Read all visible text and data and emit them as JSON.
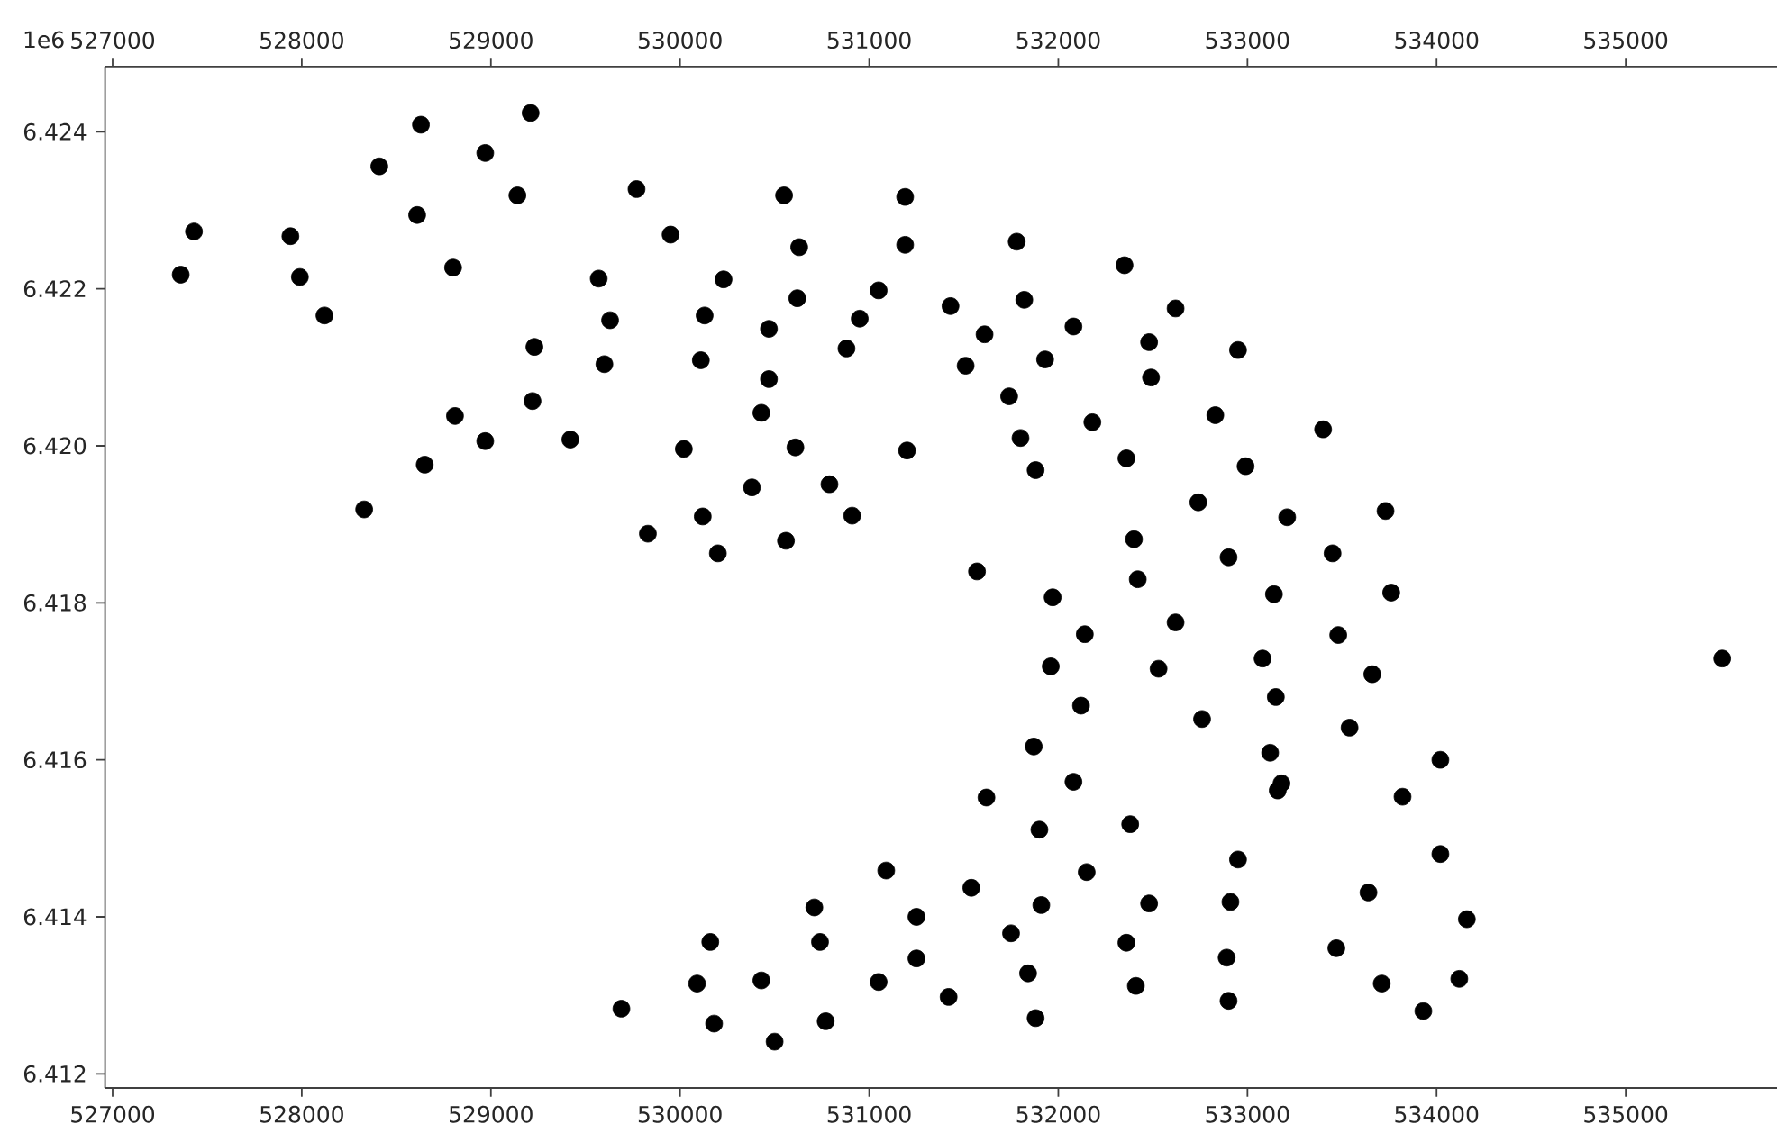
{
  "chart_data": {
    "type": "scatter",
    "color": "#000000",
    "marker": "circle",
    "ylabel": "1e6",
    "x": [
      527430,
      527360,
      527940,
      527990,
      528120,
      528410,
      528630,
      528610,
      528800,
      528970,
      529210,
      529140,
      529570,
      529630,
      529230,
      529600,
      529220,
      528810,
      528970,
      529420,
      528650,
      528330,
      529770,
      529950,
      530230,
      530130,
      530110,
      530550,
      530630,
      530620,
      530470,
      530470,
      530430,
      530020,
      530610,
      531190,
      531190,
      531050,
      530950,
      530880,
      531200,
      530380,
      530790,
      530910,
      530120,
      529830,
      530200,
      530560,
      531430,
      531610,
      531510,
      531780,
      531820,
      531930,
      531740,
      532080,
      531800,
      531880,
      532180,
      532350,
      532620,
      532480,
      532490,
      532360,
      532740,
      532400,
      532420,
      531570,
      532950,
      532830,
      533400,
      532990,
      533210,
      533730,
      532900,
      533450,
      531970,
      532620,
      532140,
      531960,
      532530,
      532120,
      532760,
      531870,
      532080,
      531620,
      531900,
      532380,
      531090,
      531540,
      532150,
      532480,
      531910,
      530710,
      531250,
      531750,
      530160,
      530740,
      532360,
      531250,
      531840,
      530090,
      530430,
      531050,
      532410,
      531420,
      529690,
      530180,
      530770,
      531880,
      530500,
      533140,
      533760,
      533480,
      533080,
      533660,
      535510,
      533150,
      533540,
      533120,
      534020,
      533180,
      533160,
      533820,
      532950,
      534020,
      532910,
      533640,
      534160,
      532890,
      533470,
      533710,
      534120,
      532900,
      533930
    ],
    "values": [
      6.42273,
      6.42218,
      6.42267,
      6.42215,
      6.42166,
      6.42356,
      6.42409,
      6.42294,
      6.42227,
      6.42373,
      6.42424,
      6.42319,
      6.42213,
      6.4216,
      6.42126,
      6.42104,
      6.42057,
      6.42038,
      6.42006,
      6.42008,
      6.41976,
      6.41919,
      6.42327,
      6.42269,
      6.42212,
      6.42166,
      6.42109,
      6.42319,
      6.42253,
      6.42188,
      6.42149,
      6.42085,
      6.42042,
      6.41996,
      6.41998,
      6.42317,
      6.42256,
      6.42198,
      6.42162,
      6.42124,
      6.41994,
      6.41947,
      6.41951,
      6.41911,
      6.4191,
      6.41888,
      6.41863,
      6.41879,
      6.42178,
      6.42142,
      6.42102,
      6.4226,
      6.42186,
      6.4211,
      6.42063,
      6.42152,
      6.4201,
      6.41969,
      6.4203,
      6.4223,
      6.42175,
      6.42132,
      6.42087,
      6.41984,
      6.41928,
      6.41881,
      6.4183,
      6.4184,
      6.42122,
      6.42039,
      6.42021,
      6.41974,
      6.41909,
      6.41917,
      6.41858,
      6.41863,
      6.41807,
      6.41775,
      6.4176,
      6.41719,
      6.41716,
      6.41669,
      6.41652,
      6.41617,
      6.41572,
      6.41552,
      6.41511,
      6.41518,
      6.41459,
      6.41437,
      6.41457,
      6.41417,
      6.41415,
      6.41412,
      6.414,
      6.41379,
      6.41368,
      6.41368,
      6.41367,
      6.41347,
      6.41328,
      6.41315,
      6.41319,
      6.41317,
      6.41312,
      6.41298,
      6.41283,
      6.41264,
      6.41267,
      6.41271,
      6.41241,
      6.41811,
      6.41813,
      6.41759,
      6.41729,
      6.41709,
      6.41729,
      6.4168,
      6.41641,
      6.41609,
      6.416,
      6.4157,
      6.41561,
      6.41553,
      6.41473,
      6.4148,
      6.41419,
      6.41431,
      6.41397,
      6.41348,
      6.4136,
      6.41315,
      6.41321,
      6.41293,
      6.4128
    ],
    "xlim": [
      526960,
      535800
    ],
    "xticks": [
      527000,
      528000,
      529000,
      530000,
      531000,
      532000,
      533000,
      534000,
      535000
    ],
    "x2lim": [
      526960,
      535800
    ],
    "x2ticks": [
      527000,
      528000,
      529000,
      530000,
      531000,
      532000,
      533000,
      534000,
      535000
    ],
    "ylim": [
      6.41182,
      6.42483
    ],
    "yticks": [
      6.412,
      6.414,
      6.416,
      6.418,
      {
        "value": 6.42,
        "label": "6.420"
      },
      6.422,
      6.424
    ]
  }
}
